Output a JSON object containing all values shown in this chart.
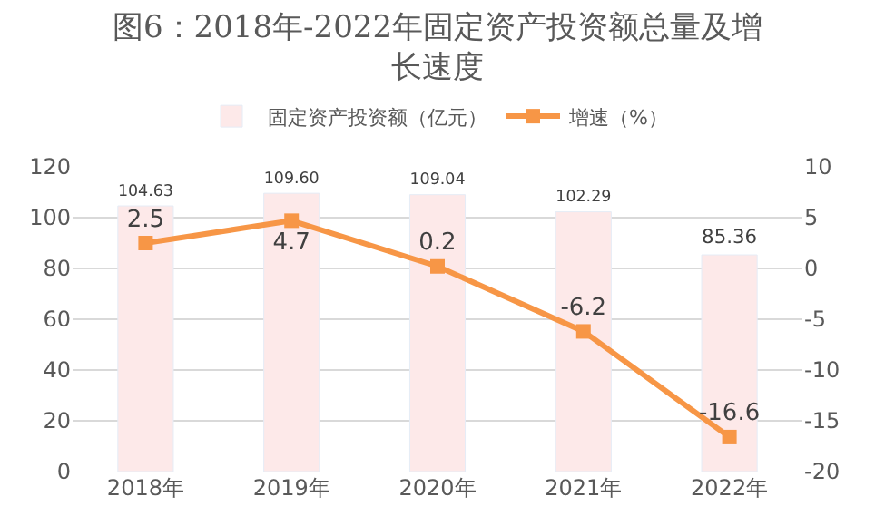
{
  "chart_data": {
    "type": "bar",
    "title": "图6：2018年-2022年固定资产投资额总量及增长速度",
    "categories": [
      "2018年",
      "2019年",
      "2020年",
      "2021年",
      "2022年"
    ],
    "series": [
      {
        "name": "固定资产投资额（亿元）",
        "color": "#fde9e9",
        "values": [
          104.63,
          109.6,
          109.04,
          102.29,
          85.36
        ],
        "value_labels": [
          "104.63",
          "109.60",
          "109.04",
          "102.29",
          "85.36"
        ]
      },
      {
        "name": "增速（%）",
        "type": "line",
        "axis": "y2",
        "color": "#f79646",
        "marker": "square",
        "values": [
          2.5,
          4.7,
          0.2,
          -6.2,
          -16.6
        ],
        "value_labels": [
          "2.5",
          "4.7",
          "0.2",
          "-6.2",
          "-16.6"
        ]
      }
    ],
    "ylim": [
      0,
      120
    ],
    "yticks": [
      0,
      20,
      40,
      60,
      80,
      100,
      120
    ],
    "y2lim": [
      -20,
      10
    ],
    "y2ticks": [
      -20,
      -15,
      -10,
      -5,
      0,
      5,
      10
    ],
    "grid": "y",
    "legend": "top"
  }
}
